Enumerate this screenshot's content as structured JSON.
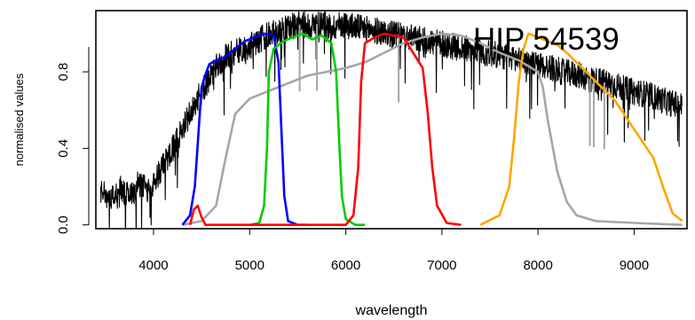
{
  "chart_data": {
    "type": "line",
    "annotation": "HIP 54539",
    "xlabel": "wavelength",
    "ylabel": "normalised values",
    "xlim": [
      3400,
      9550
    ],
    "ylim": [
      -0.02,
      1.12
    ],
    "x_ticks": [
      4000,
      5000,
      6000,
      7000,
      8000,
      9000
    ],
    "x_tick_labels": [
      "4000",
      "5000",
      "6000",
      "7000",
      "8000",
      "9000"
    ],
    "y_ticks": [
      0.0,
      0.4,
      0.8
    ],
    "y_tick_labels": [
      "0.0",
      "0.4",
      "0.8"
    ],
    "series": [
      {
        "key": "gray",
        "color": "#a6a6a6",
        "x": [
          4300,
          4500,
          4650,
          4750,
          4850,
          5000,
          5200,
          5400,
          5600,
          5800,
          6000,
          6200,
          6400,
          6600,
          6800,
          7000,
          7200,
          7400,
          7600,
          7800,
          7900,
          8000,
          8050,
          8100,
          8200,
          8300,
          8400,
          8600,
          9000,
          9500
        ],
        "y": [
          0.0,
          0.02,
          0.1,
          0.35,
          0.58,
          0.66,
          0.7,
          0.74,
          0.78,
          0.8,
          0.82,
          0.85,
          0.9,
          0.95,
          0.98,
          1.0,
          0.99,
          0.95,
          0.9,
          0.86,
          0.83,
          0.8,
          0.72,
          0.55,
          0.28,
          0.12,
          0.05,
          0.02,
          0.01,
          0.0
        ]
      },
      {
        "key": "blue",
        "color": "#0000ff",
        "x": [
          4300,
          4380,
          4430,
          4470,
          4500,
          4550,
          4580,
          4650,
          4750,
          4850,
          4950,
          5050,
          5150,
          5250,
          5300,
          5330,
          5360,
          5400,
          5500,
          5600
        ],
        "y": [
          0.0,
          0.05,
          0.2,
          0.5,
          0.72,
          0.8,
          0.84,
          0.86,
          0.88,
          0.92,
          0.96,
          0.98,
          1.0,
          0.99,
          0.85,
          0.5,
          0.15,
          0.02,
          0.0,
          0.0
        ]
      },
      {
        "key": "green",
        "color": "#00cc00",
        "x": [
          5000,
          5100,
          5150,
          5180,
          5200,
          5250,
          5350,
          5450,
          5550,
          5650,
          5750,
          5850,
          5900,
          5930,
          5960,
          6000,
          6100,
          6200
        ],
        "y": [
          0.0,
          0.01,
          0.1,
          0.4,
          0.8,
          0.92,
          0.96,
          0.98,
          1.0,
          0.97,
          0.99,
          0.95,
          0.8,
          0.45,
          0.15,
          0.03,
          0.0,
          0.0
        ]
      },
      {
        "key": "red",
        "color": "#ff0000",
        "x": [
          4380,
          4420,
          4460,
          4500,
          4540,
          6000,
          6080,
          6130,
          6160,
          6200,
          6300,
          6400,
          6500,
          6600,
          6700,
          6800,
          6850,
          6900,
          6950,
          7050,
          7200
        ],
        "y": [
          0.0,
          0.08,
          0.1,
          0.04,
          0.0,
          0.0,
          0.05,
          0.3,
          0.75,
          0.95,
          0.98,
          1.0,
          0.99,
          0.98,
          0.9,
          0.82,
          0.6,
          0.3,
          0.1,
          0.01,
          0.0
        ]
      },
      {
        "key": "orange",
        "color": "#ffa500",
        "x": [
          7400,
          7600,
          7700,
          7750,
          7800,
          7850,
          7900,
          8000,
          8100,
          8200,
          8300,
          8400,
          8500,
          8600,
          8800,
          9000,
          9200,
          9300,
          9400,
          9500
        ],
        "y": [
          0.0,
          0.05,
          0.2,
          0.45,
          0.75,
          0.92,
          1.0,
          0.98,
          0.96,
          0.94,
          0.9,
          0.85,
          0.8,
          0.75,
          0.65,
          0.5,
          0.35,
          0.2,
          0.06,
          0.02
        ]
      },
      {
        "key": "black",
        "color": "#000000",
        "x": [
          3450,
          3550,
          3650,
          3750,
          3850,
          3950,
          4050,
          4150,
          4250,
          4350,
          4450,
          4550,
          4650,
          4750,
          4850,
          4950,
          5050,
          5150,
          5250,
          5350,
          5450,
          5550,
          5650,
          5750,
          5850,
          5950,
          6050,
          6150,
          6250,
          6350,
          6450,
          6550,
          6650,
          6750,
          6850,
          6950,
          7050,
          7150,
          7250,
          7350,
          7450,
          7550,
          7650,
          7750,
          7850,
          7950,
          8050,
          8150,
          8250,
          8350,
          8450,
          8550,
          8650,
          8750,
          8850,
          8950,
          9050,
          9150,
          9250,
          9350,
          9450,
          9500
        ],
        "y": [
          0.18,
          0.12,
          0.2,
          0.14,
          0.22,
          0.18,
          0.26,
          0.35,
          0.45,
          0.55,
          0.65,
          0.74,
          0.82,
          0.88,
          0.9,
          0.92,
          0.95,
          0.98,
          1.0,
          1.02,
          1.04,
          1.05,
          1.04,
          1.06,
          1.03,
          1.05,
          1.04,
          1.03,
          1.02,
          1.01,
          1.0,
          0.99,
          0.98,
          0.97,
          0.96,
          0.95,
          0.94,
          0.93,
          0.92,
          0.91,
          0.9,
          0.89,
          0.88,
          0.87,
          0.86,
          0.84,
          0.83,
          0.82,
          0.8,
          0.79,
          0.78,
          0.76,
          0.75,
          0.74,
          0.72,
          0.7,
          0.69,
          0.68,
          0.66,
          0.64,
          0.63,
          0.62
        ]
      }
    ]
  }
}
